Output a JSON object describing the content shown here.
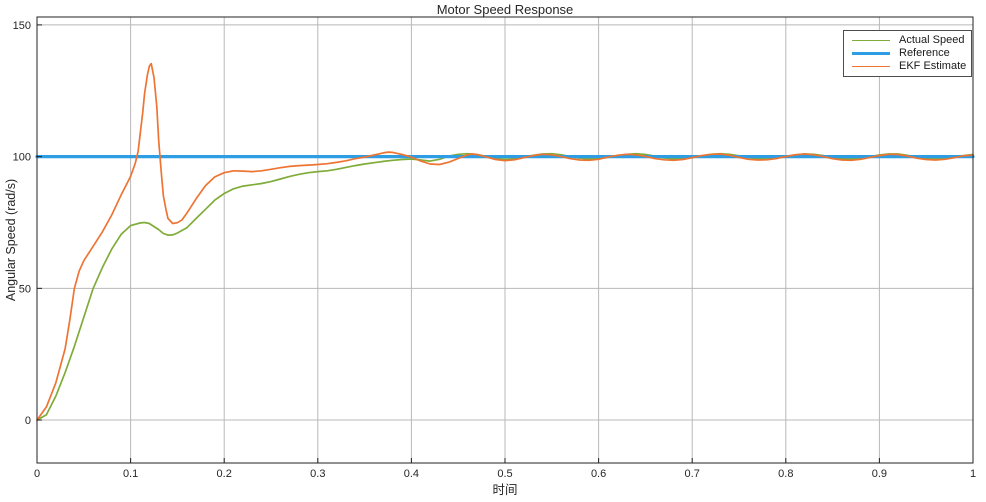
{
  "chart_data": {
    "type": "line",
    "title": "Motor Speed Response",
    "xlabel": "时间",
    "ylabel": "Angular Speed (rad/s)",
    "xlim": [
      0,
      1
    ],
    "ylim": [
      -16.3,
      153
    ],
    "xticks": [
      0,
      0.1,
      0.2,
      0.3,
      0.4,
      0.5,
      0.6,
      0.7,
      0.8,
      0.9,
      1
    ],
    "xtick_labels": [
      "0",
      "0.1",
      "0.2",
      "0.3",
      "0.4",
      "0.5",
      "0.6",
      "0.7",
      "0.8",
      "0.9",
      "1"
    ],
    "yticks": [
      0,
      50,
      100,
      150
    ],
    "ytick_labels": [
      "0",
      "50",
      "100",
      "150"
    ],
    "grid": true,
    "grid_color": "#b8b8b8",
    "axis_color": "#222222",
    "tick_label_color": "#262626",
    "legend": {
      "position": "top-right",
      "border_color": "#4d4d4d",
      "background": "#ffffff"
    },
    "series": [
      {
        "name": "Actual Speed",
        "color": "#7FAC38",
        "line_width": 1.7,
        "points": [
          [
            0,
            0
          ],
          [
            0.01,
            2
          ],
          [
            0.02,
            9
          ],
          [
            0.03,
            18
          ],
          [
            0.04,
            28
          ],
          [
            0.05,
            39
          ],
          [
            0.06,
            50
          ],
          [
            0.07,
            58
          ],
          [
            0.08,
            65
          ],
          [
            0.09,
            70.5
          ],
          [
            0.1,
            73.8
          ],
          [
            0.11,
            74.8
          ],
          [
            0.115,
            75
          ],
          [
            0.12,
            74.6
          ],
          [
            0.13,
            72.3
          ],
          [
            0.135,
            70.8
          ],
          [
            0.14,
            70.2
          ],
          [
            0.145,
            70.3
          ],
          [
            0.15,
            71
          ],
          [
            0.16,
            73
          ],
          [
            0.17,
            76.5
          ],
          [
            0.18,
            80
          ],
          [
            0.19,
            83.5
          ],
          [
            0.2,
            86
          ],
          [
            0.21,
            87.8
          ],
          [
            0.22,
            88.8
          ],
          [
            0.23,
            89.3
          ],
          [
            0.24,
            89.8
          ],
          [
            0.25,
            90.5
          ],
          [
            0.26,
            91.5
          ],
          [
            0.27,
            92.5
          ],
          [
            0.28,
            93.3
          ],
          [
            0.29,
            93.9
          ],
          [
            0.3,
            94.3
          ],
          [
            0.31,
            94.6
          ],
          [
            0.32,
            95.2
          ],
          [
            0.33,
            95.9
          ],
          [
            0.34,
            96.6
          ],
          [
            0.35,
            97.2
          ],
          [
            0.36,
            97.7
          ],
          [
            0.37,
            98.2
          ],
          [
            0.38,
            98.6
          ],
          [
            0.39,
            98.9
          ],
          [
            0.4,
            99.1
          ],
          [
            0.41,
            98.7
          ],
          [
            0.42,
            98.3
          ],
          [
            0.43,
            99
          ],
          [
            0.44,
            100.2
          ],
          [
            0.45,
            100.9
          ],
          [
            0.46,
            101.1
          ],
          [
            0.47,
            100.8
          ],
          [
            0.48,
            100.1
          ],
          [
            0.49,
            99.4
          ],
          [
            0.5,
            99
          ],
          [
            0.51,
            99.2
          ],
          [
            0.52,
            99.8
          ],
          [
            0.53,
            100.5
          ],
          [
            0.54,
            101
          ],
          [
            0.55,
            101.1
          ],
          [
            0.56,
            100.7
          ],
          [
            0.57,
            100
          ],
          [
            0.58,
            99.4
          ],
          [
            0.59,
            99.1
          ],
          [
            0.6,
            99.2
          ],
          [
            0.61,
            99.7
          ],
          [
            0.62,
            100.4
          ],
          [
            0.63,
            100.9
          ],
          [
            0.64,
            101.1
          ],
          [
            0.65,
            100.8
          ],
          [
            0.66,
            100.2
          ],
          [
            0.67,
            99.5
          ],
          [
            0.68,
            99.1
          ],
          [
            0.69,
            99.2
          ],
          [
            0.7,
            99.6
          ],
          [
            0.71,
            100.3
          ],
          [
            0.72,
            100.9
          ],
          [
            0.73,
            101.1
          ],
          [
            0.74,
            100.9
          ],
          [
            0.75,
            100.3
          ],
          [
            0.76,
            99.6
          ],
          [
            0.77,
            99.2
          ],
          [
            0.78,
            99.1
          ],
          [
            0.79,
            99.5
          ],
          [
            0.8,
            100.1
          ],
          [
            0.81,
            100.7
          ],
          [
            0.82,
            101
          ],
          [
            0.83,
            100.9
          ],
          [
            0.84,
            100.4
          ],
          [
            0.85,
            99.7
          ],
          [
            0.86,
            99.2
          ],
          [
            0.87,
            99.1
          ],
          [
            0.88,
            99.4
          ],
          [
            0.89,
            100
          ],
          [
            0.9,
            100.6
          ],
          [
            0.91,
            101
          ],
          [
            0.92,
            101
          ],
          [
            0.93,
            100.5
          ],
          [
            0.94,
            99.8
          ],
          [
            0.95,
            99.3
          ],
          [
            0.96,
            99.1
          ],
          [
            0.97,
            99.3
          ],
          [
            0.98,
            99.8
          ],
          [
            0.99,
            100.4
          ],
          [
            1,
            100.8
          ]
        ]
      },
      {
        "name": "Reference",
        "color": "#2D9EE3",
        "line_width": 3.2,
        "points": [
          [
            0,
            100
          ],
          [
            1,
            100
          ]
        ]
      },
      {
        "name": "EKF Estimate",
        "color": "#EE7433",
        "line_width": 1.7,
        "points": [
          [
            0,
            0
          ],
          [
            0.01,
            5
          ],
          [
            0.02,
            14
          ],
          [
            0.03,
            27
          ],
          [
            0.035,
            38
          ],
          [
            0.04,
            50
          ],
          [
            0.045,
            56.5
          ],
          [
            0.05,
            60.5
          ],
          [
            0.06,
            66
          ],
          [
            0.07,
            71.5
          ],
          [
            0.08,
            78
          ],
          [
            0.09,
            85.5
          ],
          [
            0.095,
            89
          ],
          [
            0.1,
            92.5
          ],
          [
            0.105,
            97.5
          ],
          [
            0.108,
            102
          ],
          [
            0.11,
            108
          ],
          [
            0.113,
            117
          ],
          [
            0.115,
            124
          ],
          [
            0.118,
            131
          ],
          [
            0.12,
            134.3
          ],
          [
            0.122,
            135.3
          ],
          [
            0.125,
            130
          ],
          [
            0.128,
            119
          ],
          [
            0.13,
            106
          ],
          [
            0.133,
            93
          ],
          [
            0.135,
            85
          ],
          [
            0.138,
            79.5
          ],
          [
            0.14,
            76.5
          ],
          [
            0.145,
            74.6
          ],
          [
            0.15,
            74.9
          ],
          [
            0.155,
            76
          ],
          [
            0.16,
            78.5
          ],
          [
            0.17,
            84
          ],
          [
            0.18,
            89
          ],
          [
            0.19,
            92.3
          ],
          [
            0.2,
            93.9
          ],
          [
            0.21,
            94.6
          ],
          [
            0.22,
            94.5
          ],
          [
            0.23,
            94.3
          ],
          [
            0.24,
            94.6
          ],
          [
            0.25,
            95.2
          ],
          [
            0.26,
            95.8
          ],
          [
            0.27,
            96.3
          ],
          [
            0.28,
            96.6
          ],
          [
            0.29,
            96.8
          ],
          [
            0.3,
            97
          ],
          [
            0.31,
            97.3
          ],
          [
            0.32,
            97.8
          ],
          [
            0.33,
            98.4
          ],
          [
            0.34,
            99.2
          ],
          [
            0.35,
            99.8
          ],
          [
            0.36,
            100.6
          ],
          [
            0.37,
            101.4
          ],
          [
            0.375,
            101.7
          ],
          [
            0.38,
            101.6
          ],
          [
            0.39,
            100.8
          ],
          [
            0.4,
            99.8
          ],
          [
            0.41,
            98.3
          ],
          [
            0.42,
            97.2
          ],
          [
            0.43,
            97
          ],
          [
            0.44,
            97.9
          ],
          [
            0.45,
            99.3
          ],
          [
            0.46,
            100.7
          ],
          [
            0.465,
            101
          ],
          [
            0.47,
            100.8
          ],
          [
            0.48,
            99.9
          ],
          [
            0.49,
            98.9
          ],
          [
            0.5,
            98.5
          ],
          [
            0.51,
            98.8
          ],
          [
            0.52,
            99.6
          ],
          [
            0.53,
            100.4
          ],
          [
            0.54,
            100.9
          ],
          [
            0.55,
            100.7
          ],
          [
            0.56,
            100
          ],
          [
            0.57,
            99.2
          ],
          [
            0.58,
            98.7
          ],
          [
            0.59,
            98.6
          ],
          [
            0.6,
            99
          ],
          [
            0.61,
            99.8
          ],
          [
            0.62,
            100.5
          ],
          [
            0.63,
            100.9
          ],
          [
            0.64,
            100.7
          ],
          [
            0.65,
            100.1
          ],
          [
            0.66,
            99.3
          ],
          [
            0.67,
            98.8
          ],
          [
            0.68,
            98.6
          ],
          [
            0.69,
            98.9
          ],
          [
            0.7,
            99.6
          ],
          [
            0.71,
            100.4
          ],
          [
            0.72,
            100.9
          ],
          [
            0.73,
            101
          ],
          [
            0.74,
            100.5
          ],
          [
            0.75,
            99.7
          ],
          [
            0.76,
            99
          ],
          [
            0.77,
            98.7
          ],
          [
            0.78,
            98.8
          ],
          [
            0.79,
            99.3
          ],
          [
            0.8,
            100
          ],
          [
            0.81,
            100.7
          ],
          [
            0.82,
            101
          ],
          [
            0.83,
            100.7
          ],
          [
            0.84,
            100
          ],
          [
            0.85,
            99.2
          ],
          [
            0.86,
            98.7
          ],
          [
            0.87,
            98.6
          ],
          [
            0.88,
            99
          ],
          [
            0.89,
            99.7
          ],
          [
            0.9,
            100.4
          ],
          [
            0.91,
            100.9
          ],
          [
            0.92,
            100.8
          ],
          [
            0.93,
            100.2
          ],
          [
            0.94,
            99.4
          ],
          [
            0.95,
            98.9
          ],
          [
            0.96,
            98.7
          ],
          [
            0.97,
            99
          ],
          [
            0.98,
            99.6
          ],
          [
            0.99,
            100.3
          ],
          [
            1,
            100.6
          ]
        ]
      }
    ]
  }
}
